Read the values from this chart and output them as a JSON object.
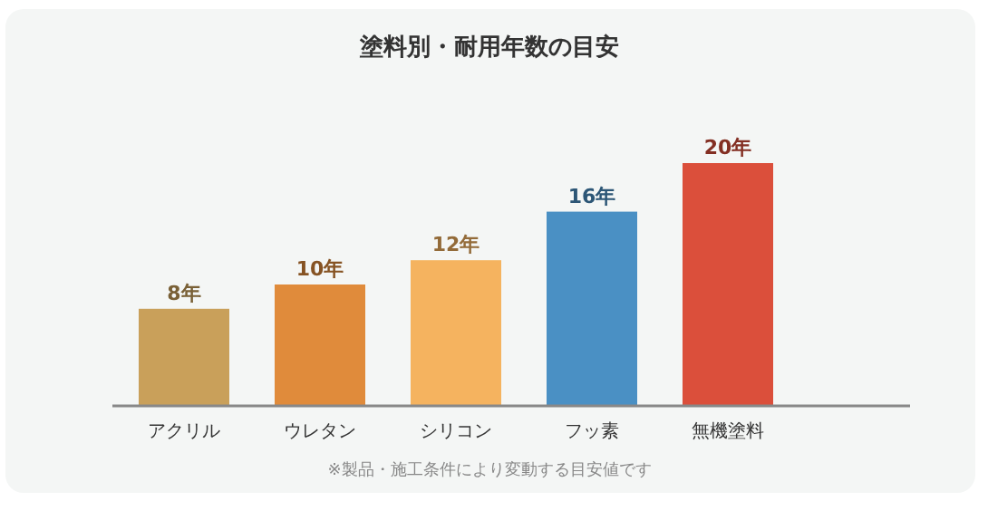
{
  "chart_data": {
    "type": "bar",
    "title": "塗料別・耐用年数の目安",
    "categories": [
      "アクリル",
      "ウレタン",
      "シリコン",
      "フッ素",
      "無機塗料"
    ],
    "values": [
      8,
      10,
      12,
      16,
      20
    ],
    "value_labels": [
      "8年",
      "10年",
      "12年",
      "16年",
      "20年"
    ],
    "colors": [
      "#c9a05a",
      "#e08b3b",
      "#f5b35f",
      "#4a90c4",
      "#db4f3b"
    ],
    "annotations": [
      "※製品・施工条件により変動する目安値です"
    ]
  }
}
